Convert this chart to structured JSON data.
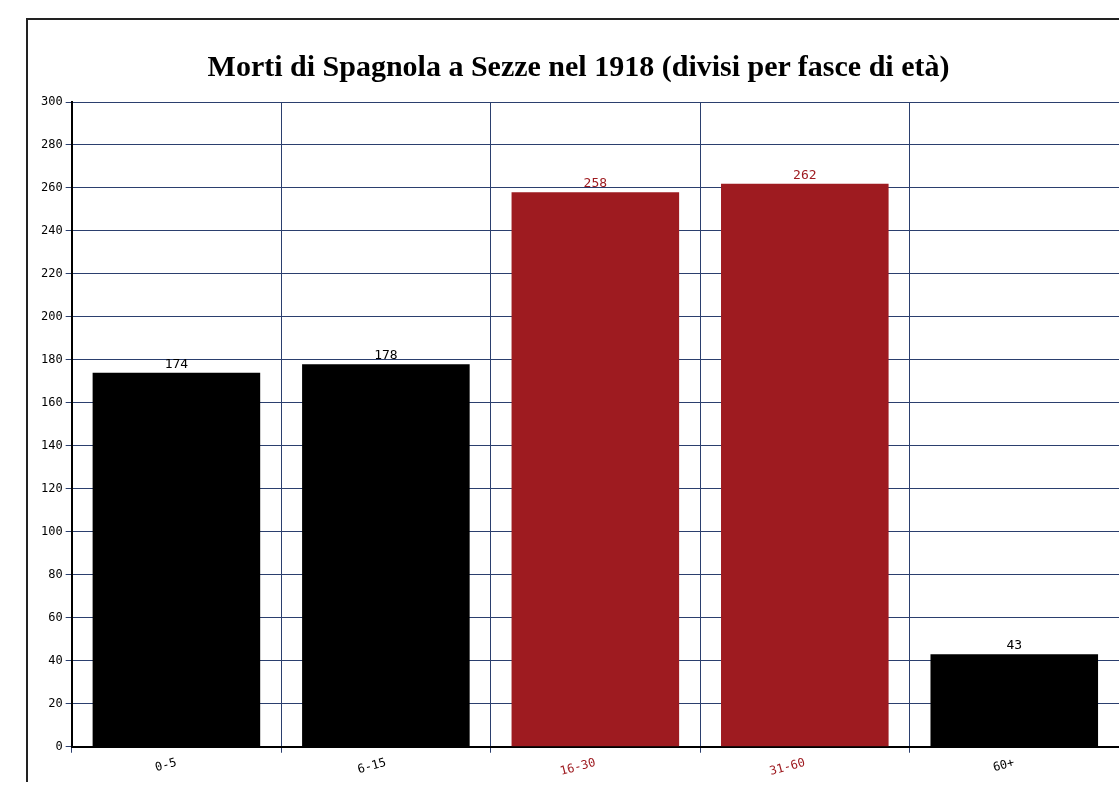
{
  "chart_data": {
    "type": "bar",
    "title": "Morti di Spagnola a Sezze nel 1918 (divisi per fasce di età)",
    "categories": [
      "0-5",
      "6-15",
      "16-30",
      "31-60",
      "60+"
    ],
    "values": [
      174,
      178,
      258,
      262,
      43
    ],
    "colors": [
      "#000000",
      "#000000",
      "#9e1b20",
      "#9e1b20",
      "#000000"
    ],
    "ylim": [
      0,
      300
    ],
    "yticks": [
      0,
      20,
      40,
      60,
      80,
      100,
      120,
      140,
      160,
      180,
      200,
      220,
      240,
      260,
      280,
      300
    ],
    "grid": true,
    "legend": false,
    "data_labels": true
  }
}
